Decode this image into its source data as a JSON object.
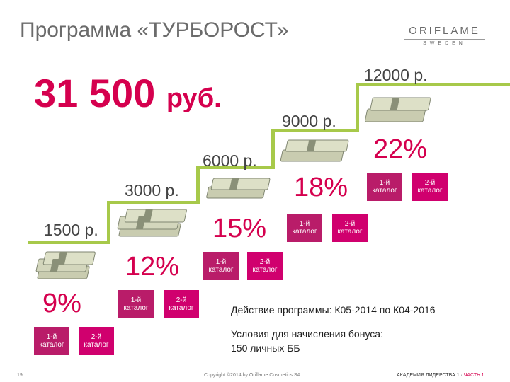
{
  "title": "Программа «ТУРБОРОСТ»",
  "logo": {
    "main": "ORIFLAME",
    "sub": "SWEDEN"
  },
  "big_sum": {
    "value": "31 500",
    "currency": "руб."
  },
  "steps": [
    {
      "amount": "1500 р.",
      "percent": "9%",
      "cat1": "1-й каталог",
      "cat2": "2-й каталог"
    },
    {
      "amount": "3000 р.",
      "percent": "12%",
      "cat1": "1-й каталог",
      "cat2": "2-й каталог"
    },
    {
      "amount": "6000 р.",
      "percent": "15%",
      "cat1": "1-й каталог",
      "cat2": "2-й каталог"
    },
    {
      "amount": "9000 р.",
      "percent": "18%",
      "cat1": "1-й каталог",
      "cat2": "2-й каталог"
    },
    {
      "amount": "12000 р.",
      "percent": "22%",
      "cat1": "1-й каталог",
      "cat2": "2-й каталог"
    }
  ],
  "info": {
    "action": "Действие программы: К05-2014 по К04-2016",
    "conditions_line1": "Условия для начисления бонуса:",
    "conditions_line2": "150 личных ББ"
  },
  "footer": {
    "page_number": "19",
    "copyright": "Copyright ©2014 by Oriflame Cosmetics SA",
    "academy": "АКАДЕМИЯ ЛИДЕРСТВА 1 ·",
    "part": "ЧАСТЬ 1"
  },
  "colors": {
    "accent": "#d5004e",
    "stair": "#a7c94a",
    "catalog1": "#b91c69",
    "catalog2": "#d0006e"
  },
  "icons": [
    "money-stack-icon"
  ]
}
